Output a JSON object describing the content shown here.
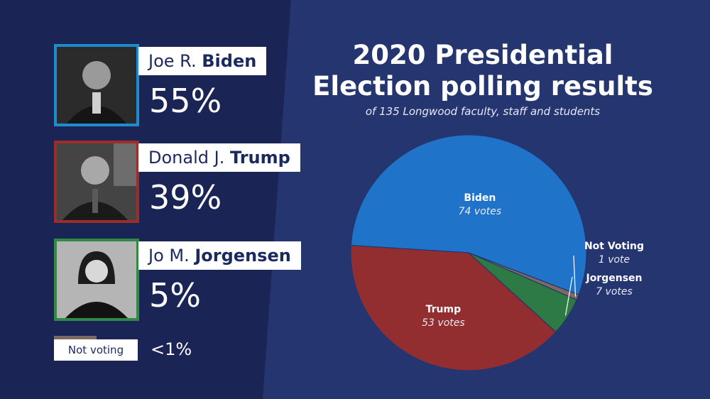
{
  "candidates": [
    {
      "first": "Joe R.",
      "last": "Biden",
      "percent": "55%",
      "color": "#1e8ccc"
    },
    {
      "first": "Donald J.",
      "last": "Trump",
      "percent": "39%",
      "color": "#9b2d2a"
    },
    {
      "first": "Jo M.",
      "last": "Jorgensen",
      "percent": "5%",
      "color": "#2f8a43"
    }
  ],
  "not_voting": {
    "label": "Not voting",
    "percent": "<1%",
    "color": "#7b6a63"
  },
  "chart_data": {
    "type": "pie",
    "title": "2020 Presidential Election polling results",
    "subtitle": "of 135 Longwood faculty, staff and students",
    "slices": [
      {
        "name": "Biden",
        "value": 74,
        "label": "74 votes",
        "color": "#1f74c9"
      },
      {
        "name": "Not Voting",
        "value": 1,
        "label": "1 vote",
        "color": "#7b6a63"
      },
      {
        "name": "Jorgensen",
        "value": 7,
        "label": "7 votes",
        "color": "#2e7a45"
      },
      {
        "name": "Trump",
        "value": 53,
        "label": "53 votes",
        "color": "#922d30"
      }
    ]
  }
}
